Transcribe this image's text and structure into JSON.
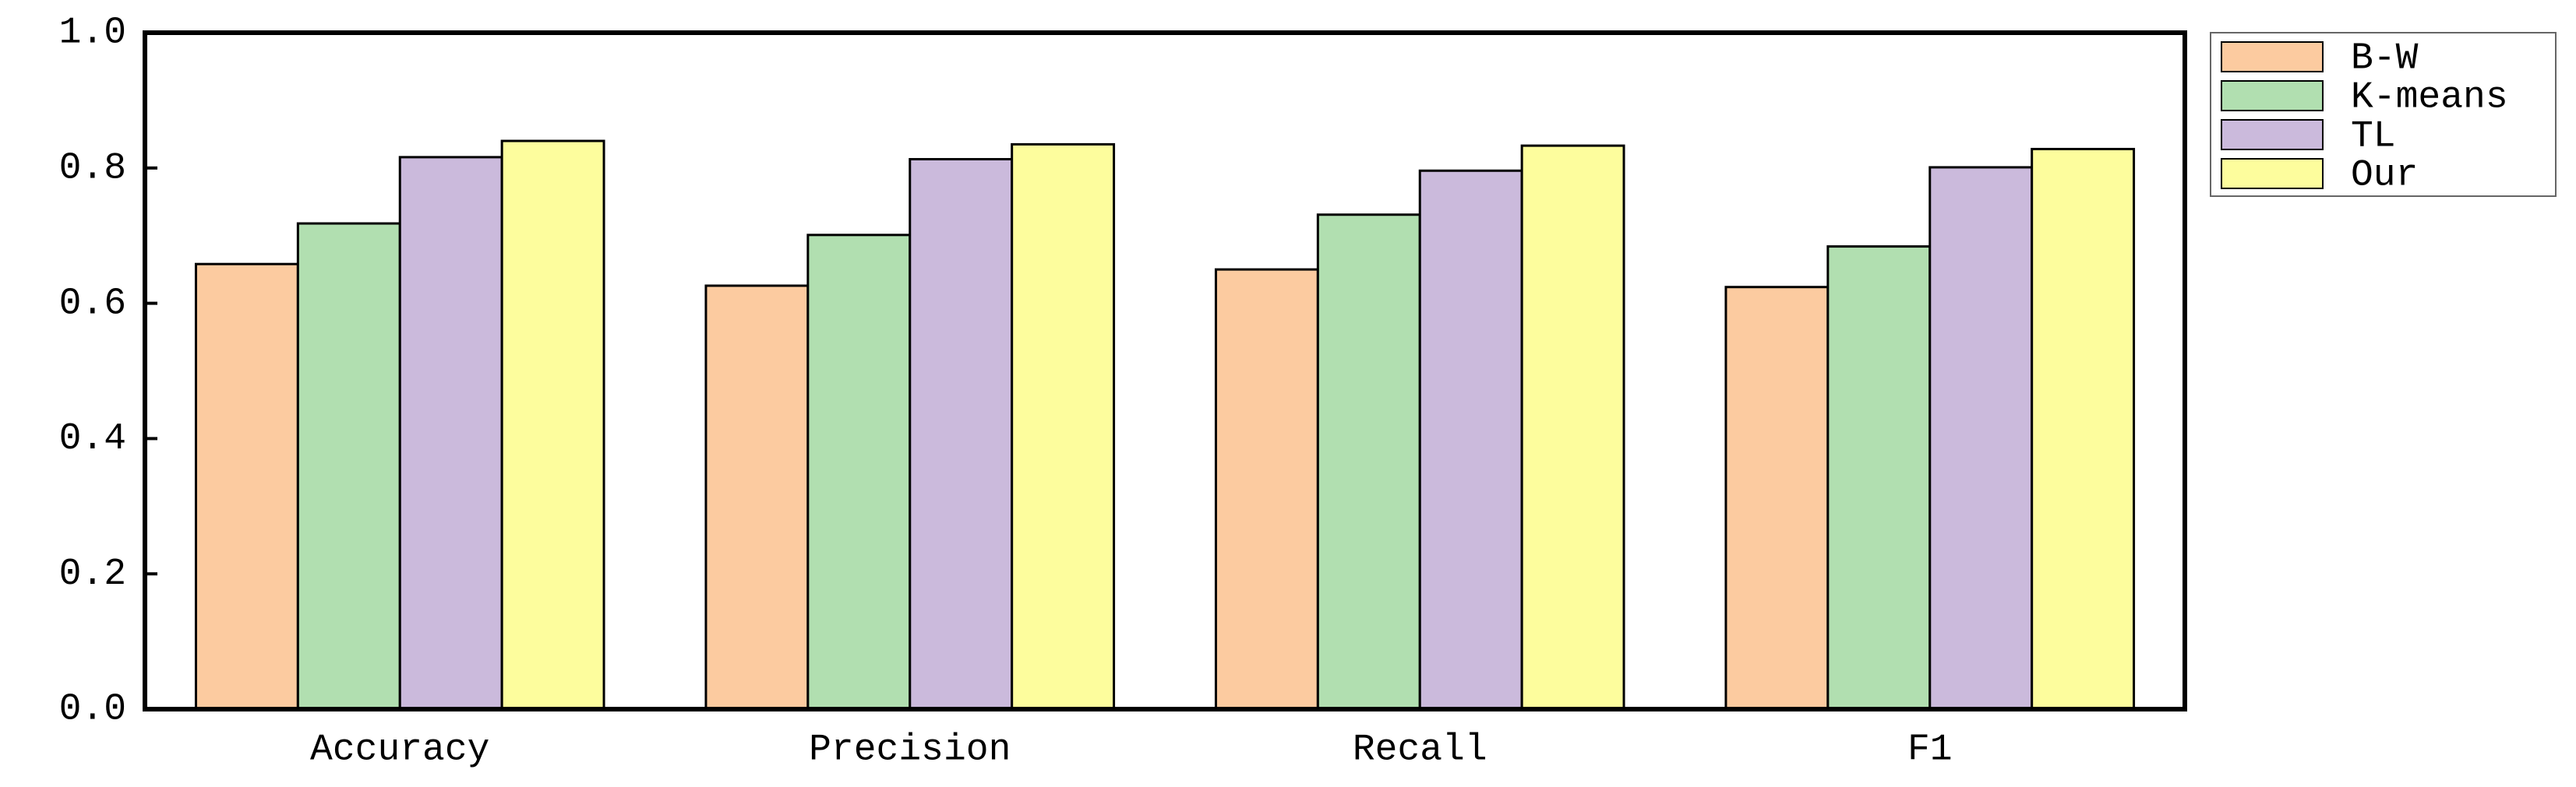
{
  "chart_data": {
    "type": "bar",
    "categories": [
      "Accuracy",
      "Precision",
      "Recall",
      "F1"
    ],
    "series": [
      {
        "name": "B-W",
        "color": "#fccba0",
        "values": [
          0.658,
          0.626,
          0.65,
          0.624
        ]
      },
      {
        "name": "K-means",
        "color": "#b1dfb0",
        "values": [
          0.718,
          0.701,
          0.731,
          0.684
        ]
      },
      {
        "name": "TL",
        "color": "#cbbadc",
        "values": [
          0.816,
          0.813,
          0.796,
          0.801
        ]
      },
      {
        "name": "Our",
        "color": "#fdfd9d",
        "values": [
          0.84,
          0.835,
          0.833,
          0.828
        ]
      }
    ],
    "ylim": [
      0,
      1
    ],
    "yticks": [
      {
        "value": 0,
        "label": "0.0"
      },
      0.2,
      0.4,
      0.6,
      0.8,
      {
        "value": 1,
        "label": "1.0"
      }
    ],
    "legend": "outside-upper-right"
  }
}
